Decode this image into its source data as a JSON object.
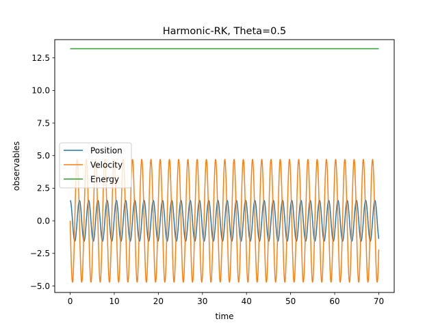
{
  "chart_data": {
    "type": "line",
    "title": "Harmonic-RK, Theta=0.5",
    "xlabel": "time",
    "ylabel": "observables",
    "xlim": [
      -3.5,
      73.5
    ],
    "ylim": [
      -5.5,
      13.9
    ],
    "xticks": [
      0,
      10,
      20,
      30,
      40,
      50,
      60,
      70
    ],
    "xtick_labels": [
      "0",
      "10",
      "20",
      "30",
      "40",
      "50",
      "60",
      "70"
    ],
    "yticks": [
      -5.0,
      -2.5,
      0.0,
      2.5,
      5.0,
      7.5,
      10.0,
      12.5
    ],
    "ytick_labels": [
      "−5.0",
      "−2.5",
      "0.0",
      "2.5",
      "5.0",
      "7.5",
      "10.0",
      "12.5"
    ],
    "grid": false,
    "legend_position": "center-left",
    "series": [
      {
        "name": "Position",
        "color": "#1f77b4",
        "model": "amplitude*cos(omega*t+phase)",
        "amplitude": 1.57,
        "omega": 3.0,
        "phase": 0.0,
        "t_start": 0,
        "t_end": 70
      },
      {
        "name": "Velocity",
        "color": "#ff7f0e",
        "model": "amplitude*cos(omega*t+phase)",
        "amplitude": 4.71,
        "omega": 3.0,
        "phase": 1.5708,
        "t_start": 0,
        "t_end": 70
      },
      {
        "name": "Energy",
        "color": "#2ca02c",
        "model": "constant",
        "value": 13.2,
        "t_start": 0,
        "t_end": 70
      }
    ]
  }
}
